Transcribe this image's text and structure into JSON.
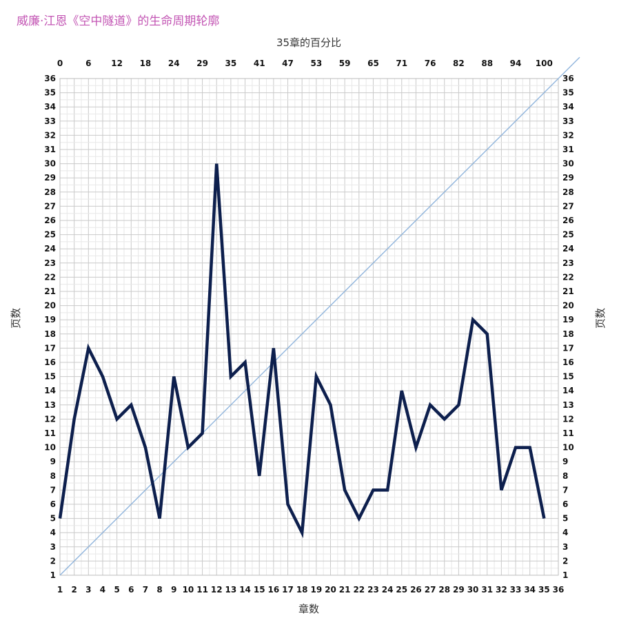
{
  "chart_data": {
    "type": "line",
    "title": "威廉·江恩《空中隧道》的生命周期轮廓",
    "xlabel": "章数",
    "ylabel": "页数",
    "ylabel_right": "页数",
    "x2label": "35章的百分比",
    "xlim": [
      1,
      36
    ],
    "ylim": [
      1,
      36
    ],
    "x_ticks": [
      1,
      2,
      3,
      4,
      5,
      6,
      7,
      8,
      9,
      10,
      11,
      12,
      13,
      14,
      15,
      16,
      17,
      18,
      19,
      20,
      21,
      22,
      23,
      24,
      25,
      26,
      27,
      28,
      29,
      30,
      31,
      32,
      33,
      34,
      35,
      36
    ],
    "y_ticks": [
      1,
      2,
      3,
      4,
      5,
      6,
      7,
      8,
      9,
      10,
      11,
      12,
      13,
      14,
      15,
      16,
      17,
      18,
      19,
      20,
      21,
      22,
      23,
      24,
      25,
      26,
      27,
      28,
      29,
      30,
      31,
      32,
      33,
      34,
      35,
      36
    ],
    "x2_ticks": [
      {
        "x": 1,
        "label": "0"
      },
      {
        "x": 3,
        "label": "6"
      },
      {
        "x": 5,
        "label": "12"
      },
      {
        "x": 7,
        "label": "18"
      },
      {
        "x": 9,
        "label": "24"
      },
      {
        "x": 11,
        "label": "29"
      },
      {
        "x": 13,
        "label": "35"
      },
      {
        "x": 15,
        "label": "41"
      },
      {
        "x": 17,
        "label": "47"
      },
      {
        "x": 19,
        "label": "53"
      },
      {
        "x": 21,
        "label": "59"
      },
      {
        "x": 23,
        "label": "65"
      },
      {
        "x": 25,
        "label": "71"
      },
      {
        "x": 27,
        "label": "76"
      },
      {
        "x": 29,
        "label": "82"
      },
      {
        "x": 31,
        "label": "88"
      },
      {
        "x": 33,
        "label": "94"
      },
      {
        "x": 35,
        "label": "100"
      }
    ],
    "grid": true,
    "series": [
      {
        "x": [
          1,
          2,
          3,
          4,
          5,
          6,
          7,
          8,
          9,
          10,
          11,
          12,
          13,
          14,
          15,
          16,
          17,
          18,
          19,
          20,
          21,
          22,
          23,
          24,
          25,
          26,
          27,
          28,
          29,
          30,
          31,
          32,
          33,
          34,
          35
        ],
        "values": [
          5,
          12,
          17,
          15,
          12,
          13,
          10,
          5,
          15,
          10,
          11,
          30,
          15,
          16,
          8,
          17,
          6,
          4,
          15,
          13,
          7,
          5,
          7,
          7,
          14,
          10,
          13,
          12,
          13,
          19,
          18,
          7,
          10,
          10,
          5
        ],
        "color": "#0d1f4d"
      },
      {
        "x": [
          1,
          37.5
        ],
        "values": [
          1,
          37.5
        ],
        "color": "#8fb4dc"
      }
    ]
  }
}
